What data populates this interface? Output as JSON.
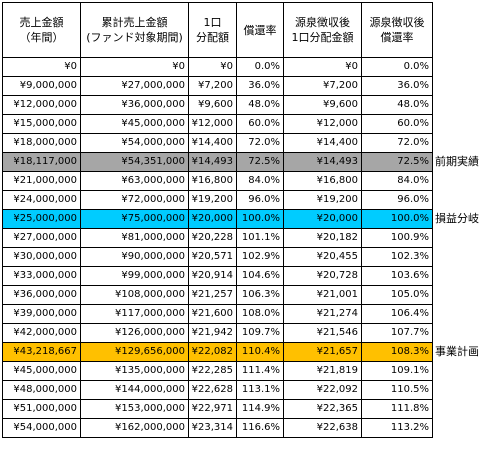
{
  "headers": [
    [
      "売上金額",
      "（年間）"
    ],
    [
      "累計売上金額",
      "(ファンド対象期間)"
    ],
    [
      "1口",
      "分配額"
    ],
    [
      "償還率"
    ],
    [
      "源泉徴収後",
      "1口分配金額"
    ],
    [
      "源泉徴収後",
      "償還率"
    ]
  ],
  "rows": [
    [
      "¥0",
      "¥0",
      "¥0",
      "0.0%",
      "¥0",
      "0.0%"
    ],
    [
      "¥9,000,000",
      "¥27,000,000",
      "¥7,200",
      "36.0%",
      "¥7,200",
      "36.0%"
    ],
    [
      "¥12,000,000",
      "¥36,000,000",
      "¥9,600",
      "48.0%",
      "¥9,600",
      "48.0%"
    ],
    [
      "¥15,000,000",
      "¥45,000,000",
      "¥12,000",
      "60.0%",
      "¥12,000",
      "60.0%"
    ],
    [
      "¥18,000,000",
      "¥54,000,000",
      "¥14,400",
      "72.0%",
      "¥14,400",
      "72.0%"
    ],
    [
      "¥18,117,000",
      "¥54,351,000",
      "¥14,493",
      "72.5%",
      "¥14,493",
      "72.5%"
    ],
    [
      "¥21,000,000",
      "¥63,000,000",
      "¥16,800",
      "84.0%",
      "¥16,800",
      "84.0%"
    ],
    [
      "¥24,000,000",
      "¥72,000,000",
      "¥19,200",
      "96.0%",
      "¥19,200",
      "96.0%"
    ],
    [
      "¥25,000,000",
      "¥75,000,000",
      "¥20,000",
      "100.0%",
      "¥20,000",
      "100.0%"
    ],
    [
      "¥27,000,000",
      "¥81,000,000",
      "¥20,228",
      "101.1%",
      "¥20,182",
      "100.9%"
    ],
    [
      "¥30,000,000",
      "¥90,000,000",
      "¥20,571",
      "102.9%",
      "¥20,455",
      "102.3%"
    ],
    [
      "¥33,000,000",
      "¥99,000,000",
      "¥20,914",
      "104.6%",
      "¥20,728",
      "103.6%"
    ],
    [
      "¥36,000,000",
      "¥108,000,000",
      "¥21,257",
      "106.3%",
      "¥21,001",
      "105.0%"
    ],
    [
      "¥39,000,000",
      "¥117,000,000",
      "¥21,600",
      "108.0%",
      "¥21,274",
      "106.4%"
    ],
    [
      "¥42,000,000",
      "¥126,000,000",
      "¥21,942",
      "109.7%",
      "¥21,546",
      "107.7%"
    ],
    [
      "¥43,218,667",
      "¥129,656,000",
      "¥22,082",
      "110.4%",
      "¥21,657",
      "108.3%"
    ],
    [
      "¥45,000,000",
      "¥135,000,000",
      "¥22,285",
      "111.4%",
      "¥21,819",
      "109.1%"
    ],
    [
      "¥48,000,000",
      "¥144,000,000",
      "¥22,628",
      "113.1%",
      "¥22,092",
      "110.5%"
    ],
    [
      "¥51,000,000",
      "¥153,000,000",
      "¥22,971",
      "114.9%",
      "¥22,365",
      "111.8%"
    ],
    [
      "¥54,000,000",
      "¥162,000,000",
      "¥23,314",
      "116.6%",
      "¥22,638",
      "113.2%"
    ]
  ],
  "highlights": [
    {
      "row": 5,
      "label": "前期実績",
      "color": "#a6a6a6"
    },
    {
      "row": 8,
      "label": "損益分岐",
      "color": "#00ccff"
    },
    {
      "row": 15,
      "label": "事業計画",
      "color": "#ffc000"
    }
  ]
}
